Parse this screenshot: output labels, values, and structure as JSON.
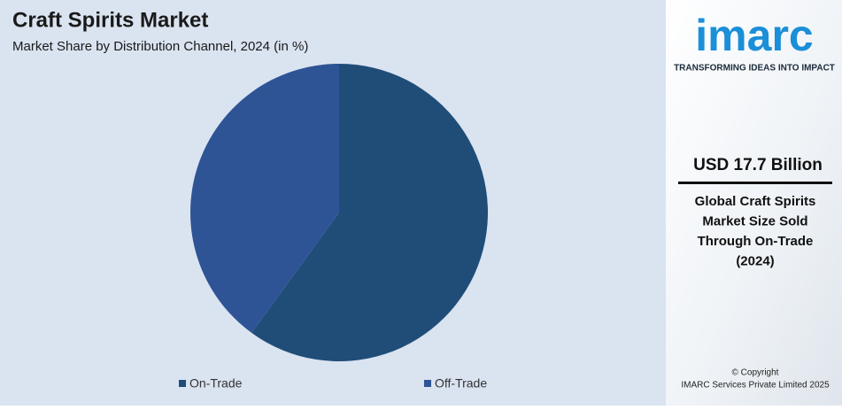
{
  "chart_data": {
    "type": "pie",
    "title": "Craft Spirits Market",
    "subtitle": "Market Share by Distribution Channel, 2024 (in %)",
    "categories": [
      "On-Trade",
      "Off-Trade"
    ],
    "values": [
      60,
      40
    ],
    "colors": [
      "#1f4d78",
      "#2e5496"
    ],
    "legend": "bottom"
  },
  "panel": {
    "brand": "imarc",
    "tagline": "TRANSFORMING IDEAS INTO IMPACT",
    "highlight": "USD 17.7 Billion",
    "description": [
      "Global Craft Spirits",
      "Market Size Sold",
      "Through On-Trade",
      "(2024)"
    ],
    "copyright": [
      "© Copyright",
      "IMARC Services Private Limited 2025"
    ]
  }
}
